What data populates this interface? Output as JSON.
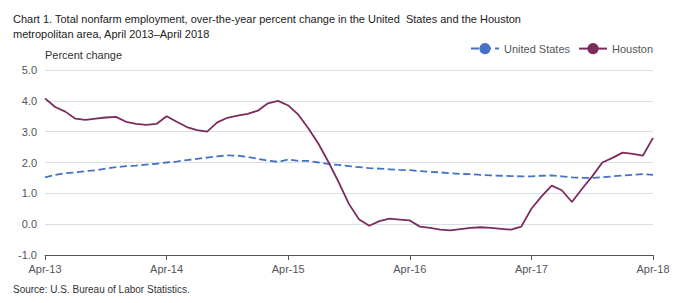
{
  "chart_data": {
    "type": "line",
    "title": "Chart 1. Total nonfarm employment, over-the-year percent change in the United  States and the Houston\nmetropolitan area, April 2013–April 2018",
    "ylabel": "Percent change",
    "source": "Source: U.S. Bureau of Labor Statistics.",
    "categories": [
      "Apr-13",
      null,
      null,
      null,
      null,
      null,
      null,
      null,
      null,
      null,
      null,
      null,
      "Apr-14",
      null,
      null,
      null,
      null,
      null,
      null,
      null,
      null,
      null,
      null,
      null,
      "Apr-15",
      null,
      null,
      null,
      null,
      null,
      null,
      null,
      null,
      null,
      null,
      null,
      "Apr-16",
      null,
      null,
      null,
      null,
      null,
      null,
      null,
      null,
      null,
      null,
      null,
      "Apr-17",
      null,
      null,
      null,
      null,
      null,
      null,
      null,
      null,
      null,
      null,
      null,
      "Apr-18"
    ],
    "series": [
      {
        "name": "United States",
        "color": "#4472C4",
        "line_style": "dashed",
        "values": [
          1.52,
          1.6,
          1.65,
          1.68,
          1.72,
          1.75,
          1.8,
          1.85,
          1.88,
          1.9,
          1.93,
          1.96,
          2.0,
          2.03,
          2.08,
          2.12,
          2.16,
          2.2,
          2.23,
          2.22,
          2.18,
          2.12,
          2.06,
          2.02,
          2.1,
          2.05,
          2.05,
          2.0,
          1.95,
          1.92,
          1.88,
          1.85,
          1.82,
          1.8,
          1.78,
          1.76,
          1.75,
          1.72,
          1.7,
          1.68,
          1.65,
          1.63,
          1.62,
          1.6,
          1.58,
          1.57,
          1.56,
          1.55,
          1.55,
          1.57,
          1.58,
          1.55,
          1.52,
          1.5,
          1.5,
          1.52,
          1.55,
          1.58,
          1.6,
          1.62,
          1.6
        ]
      },
      {
        "name": "Houston",
        "color": "#7B2C5E",
        "line_style": "solid",
        "values": [
          4.08,
          3.8,
          3.65,
          3.42,
          3.38,
          3.42,
          3.46,
          3.48,
          3.32,
          3.25,
          3.22,
          3.25,
          3.5,
          3.32,
          3.15,
          3.05,
          3.0,
          3.3,
          3.45,
          3.52,
          3.58,
          3.68,
          3.92,
          4.0,
          3.85,
          3.55,
          3.1,
          2.6,
          2.0,
          1.35,
          0.65,
          0.15,
          -0.05,
          0.1,
          0.18,
          0.15,
          0.12,
          -0.08,
          -0.12,
          -0.18,
          -0.2,
          -0.16,
          -0.12,
          -0.1,
          -0.12,
          -0.15,
          -0.18,
          -0.08,
          0.5,
          0.9,
          1.25,
          1.1,
          0.72,
          1.15,
          1.55,
          2.0,
          2.15,
          2.32,
          2.28,
          2.22,
          2.8
        ]
      }
    ],
    "ylim": [
      -1.0,
      5.0
    ],
    "yticks": [
      {
        "value": -1,
        "label": "-1.0"
      },
      {
        "value": 0,
        "label": "0.0"
      },
      {
        "value": 1,
        "label": "1.0"
      },
      {
        "value": 2,
        "label": "2.0"
      },
      {
        "value": 3,
        "label": "3.0"
      },
      {
        "value": 4,
        "label": "4.0"
      },
      {
        "value": 5,
        "label": "5.0"
      }
    ],
    "grid": true,
    "legend": "upper right"
  }
}
